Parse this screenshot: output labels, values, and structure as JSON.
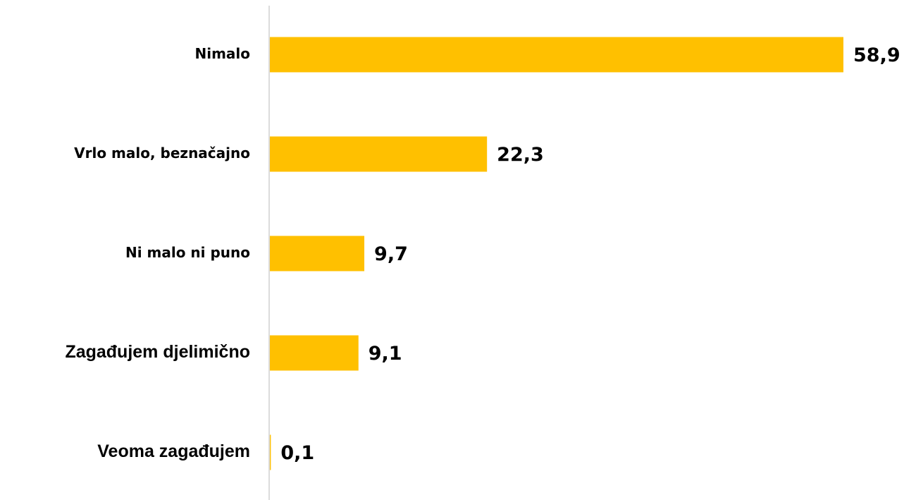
{
  "chart_data": {
    "type": "bar",
    "orientation": "horizontal",
    "categories": [
      "Nimalo",
      "Vrlo malo, beznačajno",
      "Ni malo ni puno",
      "Zagađujem djelimično",
      "Veoma zagađujem"
    ],
    "values": [
      58.9,
      22.3,
      9.7,
      9.1,
      0.1
    ],
    "value_labels": [
      "58,9",
      "22,3",
      "9,7",
      "9,1",
      "0,1"
    ],
    "color": "#ffc000"
  }
}
